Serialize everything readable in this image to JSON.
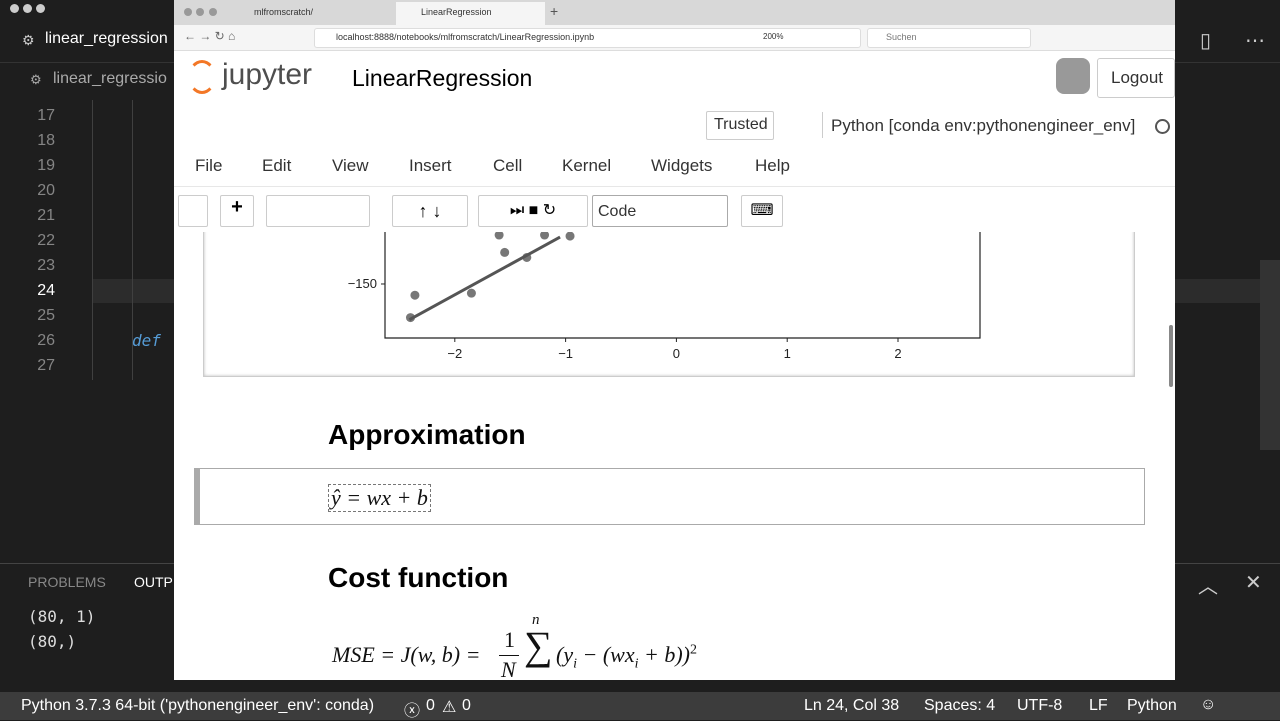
{
  "editor": {
    "tab_title": "linear_regression",
    "breadcrumb": "linear_regressio",
    "line_numbers": [
      17,
      18,
      19,
      20,
      21,
      22,
      23,
      24,
      25,
      26,
      27
    ],
    "code_keyword": "def",
    "panel_tabs": [
      "PROBLEMS",
      "OUTP"
    ],
    "output_lines": [
      "(80, 1)",
      "(80,)"
    ]
  },
  "status_bar": {
    "interpreter": "Python 3.7.3 64-bit ('pythonengineer_env': conda)",
    "errors": "0",
    "warnings": "0",
    "position": "Ln 24, Col 38",
    "spaces": "Spaces: 4",
    "encoding": "UTF-8",
    "eol": "LF",
    "language": "Python"
  },
  "browser": {
    "tabs": [
      "mlfromscratch/",
      "LinearRegression"
    ],
    "url": "localhost:8888/notebooks/mlfromscratch/LinearRegression.ipynb",
    "zoom": "200%",
    "search": "Suchen"
  },
  "jupyter": {
    "logo": "jupyter",
    "notebook_title": "LinearRegression",
    "logout": "Logout",
    "trusted": "Trusted",
    "kernel": "Python [conda env:pythonengineer_env]",
    "menu": [
      "File",
      "Edit",
      "View",
      "Insert",
      "Cell",
      "Kernel",
      "Widgets",
      "Help"
    ],
    "cell_type": "Code"
  },
  "plot": {
    "xlim": [
      -2.63,
      2.74
    ],
    "ylim": [
      -203,
      -99
    ],
    "xticks": [
      {
        "value": -2,
        "label": "−2"
      },
      {
        "value": -1,
        "label": "−1"
      },
      0,
      1,
      2
    ],
    "yticks": [
      {
        "value": -150,
        "label": "−150"
      }
    ],
    "points": {
      "x": [
        -2.36,
        -2.4,
        -1.85,
        -1.55,
        -1.35,
        -1.6,
        -1.19,
        -0.96
      ],
      "y": [
        -161,
        -183,
        -159,
        -119,
        -124,
        -102,
        -102,
        -103
      ]
    },
    "fit_line": {
      "x": [
        -2.41,
        -1.05
      ],
      "y": [
        -185,
        -104
      ]
    }
  },
  "cells": {
    "approximation_heading": "Approximation",
    "approximation_formula": "ŷ = wx + b",
    "cost_heading": "Cost function",
    "cost_formula": {
      "lhs": "MSE = J(w, b) =",
      "numerator": "1",
      "denominator": "N",
      "sum_upper": "n",
      "sum": "∑",
      "body_1": "(y",
      "sub_1": "i",
      "body_2": " − (wx",
      "sub_2": "i",
      "body_3": " + b))",
      "power": "2"
    }
  }
}
